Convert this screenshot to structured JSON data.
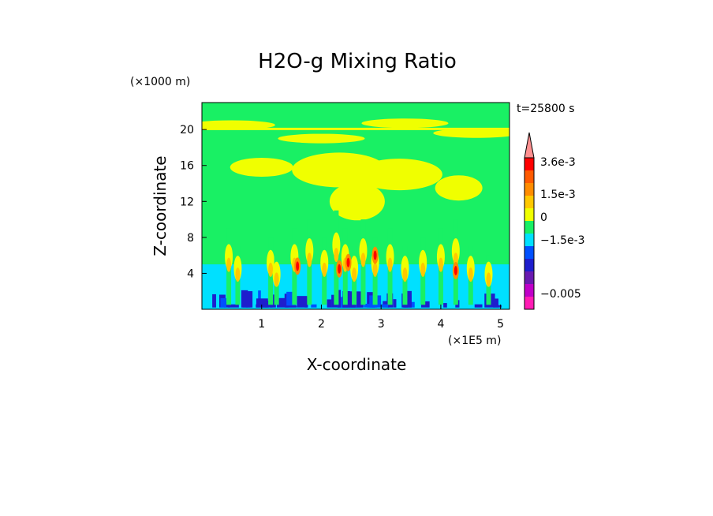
{
  "chart_data": {
    "type": "heatmap",
    "title": "H2O-g Mixing Ratio",
    "xlabel": "X-coordinate",
    "ylabel": "Z-coordinate",
    "x_unit": "(×1E5 m)",
    "y_unit": "(×1000 m)",
    "time_label": "t=25800 s",
    "xlim": [
      0,
      5.15
    ],
    "ylim": [
      0,
      23
    ],
    "x_ticks": [
      "1",
      "2",
      "3",
      "4",
      "5"
    ],
    "x_tick_values": [
      1,
      2,
      3,
      4,
      5
    ],
    "y_ticks": [
      "4",
      "8",
      "12",
      "16",
      "20"
    ],
    "y_tick_values": [
      4,
      8,
      12,
      16,
      20
    ],
    "colorbar": {
      "levels_colors": [
        "#ff1cb4",
        "#c000c8",
        "#6a1ab0",
        "#1e1ecd",
        "#0050ff",
        "#00e0ff",
        "#19f064",
        "#f0ff00",
        "#ffc800",
        "#ff8c00",
        "#ff5a00",
        "#ff0000",
        "#ff9090"
      ],
      "labels": [
        "3.6e-3",
        "1.5e-3",
        "0",
        "−1.5e-3",
        "−0.005"
      ],
      "label_values": [
        0.0036,
        0.0015,
        0,
        -0.0015,
        -0.005
      ]
    },
    "regions": {
      "background_color": "#19f064",
      "lower_layer_color": "#00e0ff",
      "lower_layer_top": 5.0,
      "bottom_band_color": "#1e1ecd",
      "bottom_band_top": 2.2,
      "upper_band_color": "#f0ff00"
    }
  }
}
